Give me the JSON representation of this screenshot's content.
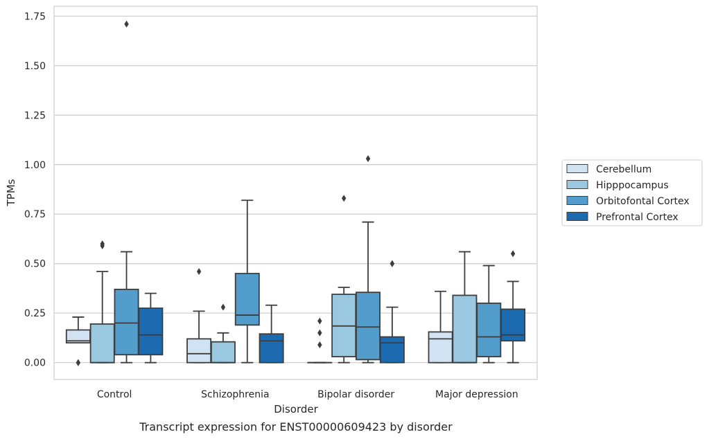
{
  "chart_data": {
    "type": "box",
    "title": "",
    "caption": "Transcript expression for ENST00000609423 by disorder",
    "xlabel": "Disorder",
    "ylabel": "TPMs",
    "ylim": [
      -0.085,
      1.8
    ],
    "yticks": [
      "0.00",
      "0.25",
      "0.50",
      "0.75",
      "1.00",
      "1.25",
      "1.50",
      "1.75"
    ],
    "ytick_values": [
      0,
      0.25,
      0.5,
      0.75,
      1.0,
      1.25,
      1.5,
      1.75
    ],
    "grid": true,
    "legend_position": "right",
    "categories": [
      "Control",
      "Schizophrenia",
      "Bipolar disorder",
      "Major depression"
    ],
    "series": [
      {
        "name": "Cerebellum",
        "color": "#d1e2f2",
        "boxes": [
          {
            "whislo": 0.1,
            "q1": 0.1,
            "med": 0.11,
            "q3": 0.165,
            "whishi": 0.23,
            "fliers": [
              0.0,
              0.0
            ]
          },
          {
            "whislo": 0.0,
            "q1": 0.0,
            "med": 0.045,
            "q3": 0.12,
            "whishi": 0.26,
            "fliers": [
              0.46
            ]
          },
          {
            "whislo": 0.0,
            "q1": 0.0,
            "med": 0.0,
            "q3": 0.0,
            "whishi": 0.0,
            "fliers": [
              0.09,
              0.15,
              0.21
            ]
          },
          {
            "whislo": 0.0,
            "q1": 0.0,
            "med": 0.12,
            "q3": 0.155,
            "whishi": 0.36,
            "fliers": []
          }
        ]
      },
      {
        "name": "Hipppocampus",
        "color": "#9ac8e0",
        "boxes": [
          {
            "whislo": 0.0,
            "q1": 0.0,
            "med": 0.0,
            "q3": 0.195,
            "whishi": 0.46,
            "fliers": [
              0.59,
              0.6
            ]
          },
          {
            "whislo": 0.0,
            "q1": 0.0,
            "med": 0.0,
            "q3": 0.105,
            "whishi": 0.15,
            "fliers": [
              0.28
            ]
          },
          {
            "whislo": 0.0,
            "q1": 0.03,
            "med": 0.185,
            "q3": 0.345,
            "whishi": 0.38,
            "fliers": [
              0.83
            ]
          },
          {
            "whislo": 0.0,
            "q1": 0.0,
            "med": 0.0,
            "q3": 0.34,
            "whishi": 0.56,
            "fliers": []
          }
        ]
      },
      {
        "name": "Orbitofontal Cortex",
        "color": "#529dcc",
        "boxes": [
          {
            "whislo": 0.0,
            "q1": 0.04,
            "med": 0.2,
            "q3": 0.37,
            "whishi": 0.56,
            "fliers": [
              1.71
            ]
          },
          {
            "whislo": 0.0,
            "q1": 0.19,
            "med": 0.24,
            "q3": 0.45,
            "whishi": 0.82,
            "fliers": []
          },
          {
            "whislo": 0.0,
            "q1": 0.015,
            "med": 0.18,
            "q3": 0.355,
            "whishi": 0.71,
            "fliers": [
              1.03
            ]
          },
          {
            "whislo": 0.0,
            "q1": 0.03,
            "med": 0.13,
            "q3": 0.3,
            "whishi": 0.49,
            "fliers": []
          }
        ]
      },
      {
        "name": "Prefrontal Cortex",
        "color": "#1c6aaf",
        "boxes": [
          {
            "whislo": 0.0,
            "q1": 0.04,
            "med": 0.14,
            "q3": 0.275,
            "whishi": 0.35,
            "fliers": []
          },
          {
            "whislo": 0.0,
            "q1": 0.0,
            "med": 0.11,
            "q3": 0.145,
            "whishi": 0.29,
            "fliers": []
          },
          {
            "whislo": 0.0,
            "q1": 0.0,
            "med": 0.1,
            "q3": 0.13,
            "whishi": 0.28,
            "fliers": [
              0.5,
              0.5
            ]
          },
          {
            "whislo": 0.0,
            "q1": 0.11,
            "med": 0.14,
            "q3": 0.27,
            "whishi": 0.41,
            "fliers": [
              0.55
            ]
          }
        ]
      }
    ]
  },
  "colors": {
    "grid": "#cccccc",
    "frame": "#cccccc",
    "box_edge": "#3d3d3d"
  }
}
